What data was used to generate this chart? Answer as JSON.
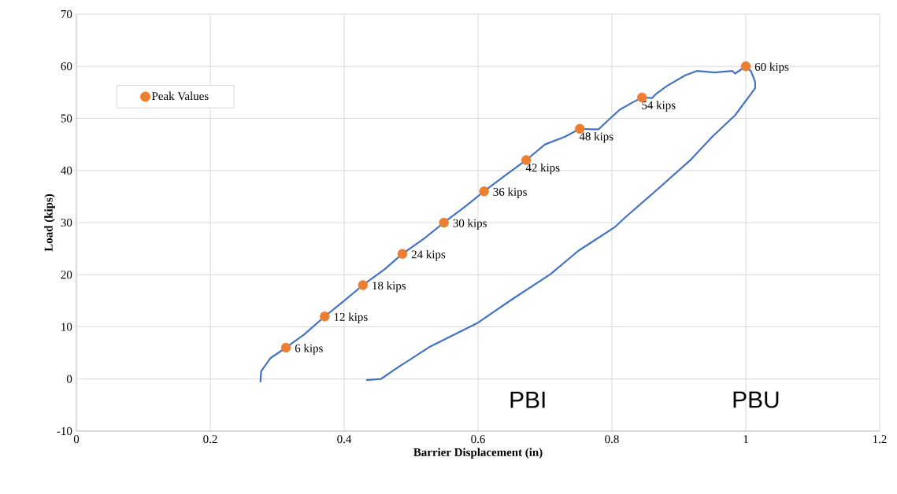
{
  "chart_data": {
    "type": "line",
    "xlabel": "Barrier Displacement (in)",
    "ylabel": "Load (kips)",
    "xlim": [
      0,
      1.2
    ],
    "xticks": [
      0,
      0.2,
      0.4,
      0.6,
      0.8,
      1,
      1.2
    ],
    "ylim": [
      -10,
      70
    ],
    "yticks": [
      -10,
      0,
      10,
      20,
      30,
      40,
      50,
      60,
      70
    ],
    "grid": true,
    "legend": "top left",
    "line_style": "solid",
    "annotations": [
      "PBI",
      "PBU"
    ],
    "series": [
      {
        "color": "#4472c4",
        "marker": "none",
        "x": [
          0.275,
          0.276,
          0.29,
          0.313,
          0.34,
          0.371,
          0.4,
          0.428,
          0.46,
          0.487,
          0.52,
          0.549,
          0.58,
          0.609,
          0.64,
          0.672,
          0.7,
          0.73,
          0.752,
          0.77,
          0.78,
          0.8,
          0.812,
          0.83,
          0.845,
          0.86,
          0.866,
          0.882,
          0.91,
          0.927,
          0.953,
          0.98,
          0.984,
          1.0,
          1.008,
          1.014,
          1.014,
          0.984,
          0.95,
          0.918,
          0.87,
          0.819,
          0.804,
          0.75,
          0.708,
          0.65,
          0.6,
          0.527,
          0.48,
          0.455,
          0.434
        ],
        "values": [
          -0.5,
          1.5,
          4,
          6,
          8.5,
          12,
          15,
          18,
          21,
          24,
          27,
          30,
          33,
          36,
          39,
          42,
          45,
          46.5,
          48,
          47.9,
          47.9,
          50.3,
          51.7,
          53,
          54,
          53.9,
          54.7,
          56.2,
          58.3,
          59.1,
          58.8,
          59.1,
          58.6,
          60,
          59,
          57,
          55.8,
          50.6,
          46.5,
          42.1,
          36.6,
          30.9,
          29.1,
          24.6,
          20.1,
          15.2,
          10.8,
          6.1,
          2.2,
          0,
          -0.2
        ]
      },
      {
        "type": "scatter",
        "name": "Peak Values",
        "color": "#ed7d31",
        "marker": "circle",
        "x": [
          0.313,
          0.371,
          0.428,
          0.487,
          0.549,
          0.609,
          0.672,
          0.752,
          0.845,
          1.0
        ],
        "values": [
          6,
          12,
          18,
          24,
          30,
          36,
          42,
          48,
          54,
          60
        ],
        "value_labels": [
          "6 kips",
          "12 kips",
          "18 kips",
          "24 kips",
          "30 kips",
          "36 kips",
          "42 kips",
          "48 kips",
          "54 kips",
          "60 kips"
        ]
      }
    ]
  }
}
